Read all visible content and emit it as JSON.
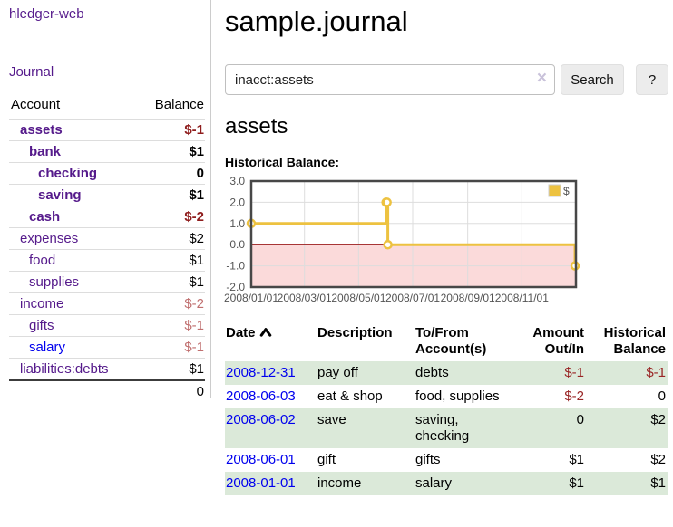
{
  "sidebar": {
    "brand": "hledger-web",
    "nav": {
      "journal": "Journal"
    },
    "accounts_table": {
      "headers": {
        "account": "Account",
        "balance": "Balance"
      },
      "rows": [
        {
          "name": "assets",
          "indent": 1,
          "bold": true,
          "balance": "$-1",
          "balance_style": "neg-strong",
          "link_style": "visited"
        },
        {
          "name": "bank",
          "indent": 2,
          "bold": true,
          "balance": "$1",
          "balance_style": "pos",
          "link_style": "visited"
        },
        {
          "name": "checking",
          "indent": 3,
          "bold": true,
          "balance": "0",
          "balance_style": "pos",
          "link_style": "visited"
        },
        {
          "name": "saving",
          "indent": 3,
          "bold": true,
          "balance": "$1",
          "balance_style": "pos",
          "link_style": "visited"
        },
        {
          "name": "cash",
          "indent": 2,
          "bold": true,
          "balance": "$-2",
          "balance_style": "neg-strong",
          "link_style": "visited"
        },
        {
          "name": "expenses",
          "indent": 1,
          "bold": false,
          "balance": "$2",
          "balance_style": "pos",
          "link_style": "visited"
        },
        {
          "name": "food",
          "indent": 2,
          "bold": false,
          "balance": "$1",
          "balance_style": "pos",
          "link_style": "visited"
        },
        {
          "name": "supplies",
          "indent": 2,
          "bold": false,
          "balance": "$1",
          "balance_style": "pos",
          "link_style": "visited"
        },
        {
          "name": "income",
          "indent": 1,
          "bold": false,
          "balance": "$-2",
          "balance_style": "neg-soft",
          "link_style": "visited"
        },
        {
          "name": "gifts",
          "indent": 2,
          "bold": false,
          "balance": "$-1",
          "balance_style": "neg-soft",
          "link_style": "visited"
        },
        {
          "name": "salary",
          "indent": 2,
          "bold": false,
          "balance": "$-1",
          "balance_style": "neg-soft",
          "link_style": "unvisited"
        },
        {
          "name": "liabilities:debts",
          "indent": 1,
          "bold": false,
          "balance": "$1",
          "balance_style": "pos",
          "link_style": "visited"
        }
      ],
      "total": "0"
    }
  },
  "header": {
    "title": "sample.journal"
  },
  "search": {
    "value": "inacct:assets",
    "button": "Search",
    "help": "?"
  },
  "account_page": {
    "title": "assets",
    "chart_label": "Historical Balance:"
  },
  "chart_data": {
    "type": "line",
    "step": true,
    "title": "Historical Balance",
    "x": [
      "2008-01-01",
      "2008-06-01",
      "2008-06-02",
      "2008-06-03",
      "2008-12-31"
    ],
    "values": [
      1,
      2,
      2,
      0,
      -1
    ],
    "x_ticks": [
      "2008/01/01",
      "2008/03/01",
      "2008/05/01",
      "2008/07/01",
      "2008/09/01",
      "2008/11/01"
    ],
    "y_ticks": [
      3.0,
      2.0,
      1.0,
      0.0,
      -1.0,
      -2.0
    ],
    "ylim": [
      -2,
      3
    ],
    "xlim": [
      "2008-01-01",
      "2009-01-01"
    ],
    "grid": true,
    "legend": [
      {
        "label": "$",
        "color": "#EDC240"
      }
    ],
    "legend_position": "top-right",
    "colors": {
      "series": "#EDC240",
      "negative_region": "#fbdada",
      "zero_line": "#8b0000",
      "grid": "#dddddd",
      "tick_text": "#545454",
      "border": "#474747"
    }
  },
  "register_table": {
    "headers": {
      "date": "Date",
      "description": "Description",
      "accounts": "To/From Account(s)",
      "amount": "Amount Out/In",
      "balance": "Historical Balance"
    },
    "rows": [
      {
        "date": "2008-12-31",
        "description": "pay off",
        "accounts": "debts",
        "amount": "$-1",
        "amount_neg": true,
        "balance": "$-1",
        "balance_neg": true
      },
      {
        "date": "2008-06-03",
        "description": "eat & shop",
        "accounts": "food, supplies",
        "amount": "$-2",
        "amount_neg": true,
        "balance": "0",
        "balance_neg": false
      },
      {
        "date": "2008-06-02",
        "description": "save",
        "accounts": "saving, checking",
        "amount": "0",
        "amount_neg": false,
        "balance": "$2",
        "balance_neg": false
      },
      {
        "date": "2008-06-01",
        "description": "gift",
        "accounts": "gifts",
        "amount": "$1",
        "amount_neg": false,
        "balance": "$2",
        "balance_neg": false
      },
      {
        "date": "2008-01-01",
        "description": "income",
        "accounts": "salary",
        "amount": "$1",
        "amount_neg": false,
        "balance": "$1",
        "balance_neg": false
      }
    ]
  },
  "icons": {
    "clear": "×",
    "sort": "chevron-up"
  },
  "colors": {
    "link_visited": "#551a8b",
    "link_unvisited": "#0000ee",
    "negative_strong": "#8f1d1d",
    "negative_soft": "#c06f6f",
    "row_green": "#dbe9d9",
    "table_amount_negative": "#992525"
  }
}
